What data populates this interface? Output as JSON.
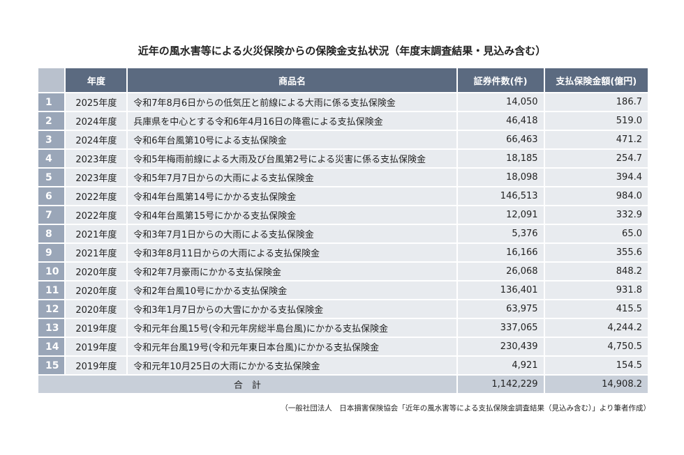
{
  "title": "近年の風水害等による火災保険からの保険金支払状況（年度末調査結果・見込み含む）",
  "headers": {
    "no": "",
    "year": "年度",
    "name": "商品名",
    "count": "証券件数(件)",
    "amount": "支払保険金額(億円)"
  },
  "rows": [
    {
      "no": "1",
      "year": "2025年度",
      "name": "令和7年8月6日からの低気圧と前線による大雨に係る支払保険金",
      "count": "14,050",
      "amount": "186.7"
    },
    {
      "no": "2",
      "year": "2024年度",
      "name": "兵庫県を中心とする令和6年4月16日の降雹による支払保険金",
      "count": "46,418",
      "amount": "519.0"
    },
    {
      "no": "3",
      "year": "2024年度",
      "name": "令和6年台風第10号による支払保険金",
      "count": "66,463",
      "amount": "471.2"
    },
    {
      "no": "4",
      "year": "2023年度",
      "name": "令和5年梅雨前線による大雨及び台風第2号による災害に係る支払保険金",
      "count": "18,185",
      "amount": "254.7"
    },
    {
      "no": "5",
      "year": "2023年度",
      "name": "令和5年7月7日からの大雨による支払保険金",
      "count": "18,098",
      "amount": "394.4"
    },
    {
      "no": "6",
      "year": "2022年度",
      "name": "令和4年台風第14号にかかる支払保険金",
      "count": "146,513",
      "amount": "984.0"
    },
    {
      "no": "7",
      "year": "2022年度",
      "name": "令和4年台風第15号にかかる支払保険金",
      "count": "12,091",
      "amount": "332.9"
    },
    {
      "no": "8",
      "year": "2021年度",
      "name": "令和3年7月1日からの大雨による支払保険金",
      "count": "5,376",
      "amount": "65.0"
    },
    {
      "no": "9",
      "year": "2021年度",
      "name": "令和3年8月11日からの大雨による支払保険金",
      "count": "16,166",
      "amount": "355.6"
    },
    {
      "no": "10",
      "year": "2020年度",
      "name": "令和2年7月豪雨にかかる支払保険金",
      "count": "26,068",
      "amount": "848.2"
    },
    {
      "no": "11",
      "year": "2020年度",
      "name": "令和2年台風10号にかかる支払保険金",
      "count": "136,401",
      "amount": "931.8"
    },
    {
      "no": "12",
      "year": "2020年度",
      "name": "令和3年1月7日からの大雪にかかる支払保険金",
      "count": "63,975",
      "amount": "415.5"
    },
    {
      "no": "13",
      "year": "2019年度",
      "name": "令和元年台風15号(令和元年房総半島台風)にかかる支払保険金",
      "count": "337,065",
      "amount": "4,244.2"
    },
    {
      "no": "14",
      "year": "2019年度",
      "name": "令和元年台風19号(令和元年東日本台風)にかかる支払保険金",
      "count": "230,439",
      "amount": "4,750.5"
    },
    {
      "no": "15",
      "year": "2019年度",
      "name": "令和元年10月25日の大雨にかかる支払保険金",
      "count": "4,921",
      "amount": "154.5"
    }
  ],
  "total": {
    "label": "合　計",
    "count": "1,142,229",
    "amount": "14,908.2"
  },
  "note": "（一般社団法人　日本損害保険協会「近年の風水害等による支払保険金調査結果（見込み含む）」より筆者作成）",
  "colors": {
    "header": "#5b6a80",
    "number_cell": "#9aa6b8",
    "row": "#e8ebef",
    "total": "#c8cfd9"
  }
}
